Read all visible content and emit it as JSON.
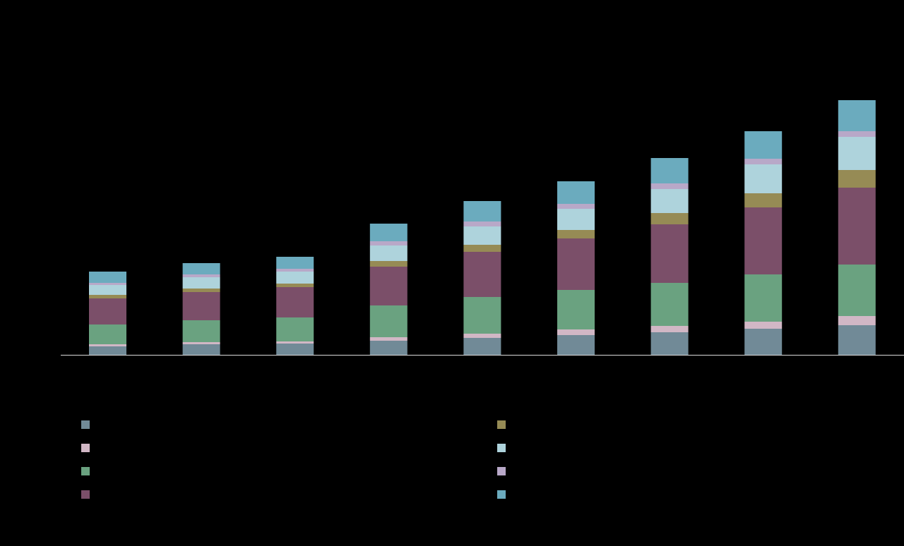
{
  "chart_data": {
    "type": "bar",
    "stacked": true,
    "title": "",
    "xlabel": "",
    "ylabel": "",
    "grid": false,
    "legend_position": "bottom",
    "ylim": [
      0,
      362
    ],
    "categories": [
      "",
      "",
      "",
      "",
      "",
      "",
      "",
      "",
      ""
    ],
    "series": [
      {
        "color": "#718a97",
        "values": [
          12,
          15,
          16,
          20,
          24,
          28,
          32,
          37,
          42
        ]
      },
      {
        "color": "#d1b7c5",
        "values": [
          3,
          3,
          3,
          5,
          6,
          8,
          9,
          10,
          13
        ]
      },
      {
        "color": "#6aa280",
        "values": [
          28,
          31,
          34,
          45,
          52,
          56,
          61,
          67,
          73
        ]
      },
      {
        "color": "#7b4f69",
        "values": [
          37,
          40,
          43,
          55,
          64,
          73,
          83,
          95,
          109
        ]
      },
      {
        "color": "#968b55",
        "values": [
          5,
          5,
          5,
          8,
          10,
          12,
          16,
          20,
          25
        ]
      },
      {
        "color": "#aed3dc",
        "values": [
          14,
          16,
          17,
          22,
          26,
          30,
          34,
          41,
          47
        ]
      },
      {
        "color": "#b8a8c8",
        "values": [
          3,
          4,
          4,
          6,
          7,
          7,
          8,
          8,
          8
        ]
      },
      {
        "color": "#6babbe",
        "values": [
          16,
          16,
          17,
          25,
          29,
          32,
          36,
          39,
          44
        ]
      }
    ],
    "legend": [
      {
        "series": 0,
        "label": ""
      },
      {
        "series": 1,
        "label": ""
      },
      {
        "series": 2,
        "label": ""
      },
      {
        "series": 3,
        "label": ""
      },
      {
        "series": 4,
        "label": ""
      },
      {
        "series": 5,
        "label": ""
      },
      {
        "series": 6,
        "label": ""
      },
      {
        "series": 7,
        "label": ""
      }
    ]
  }
}
